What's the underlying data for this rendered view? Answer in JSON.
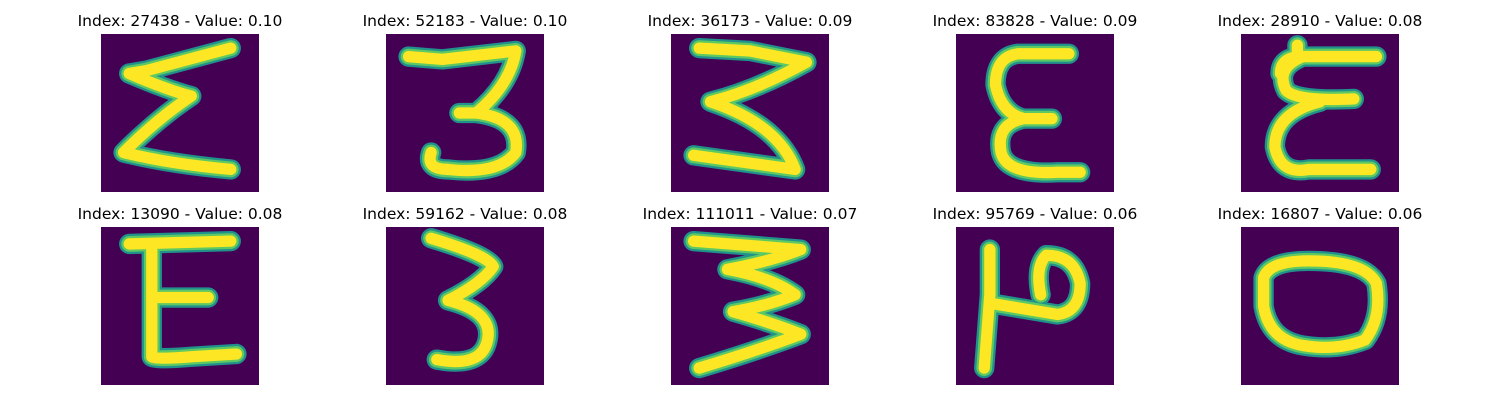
{
  "colors": {
    "background": "#440154",
    "stroke_edge": "#21918c",
    "stroke_mid": "#5ec962",
    "stroke_core": "#fde725"
  },
  "samples": [
    {
      "caption": "Index: 27438 - Value: 0.10",
      "glyph": "sigma-shape"
    },
    {
      "caption": "Index: 52183 - Value: 0.10",
      "glyph": "three-shape"
    },
    {
      "caption": "Index: 36173 - Value: 0.09",
      "glyph": "three-shape"
    },
    {
      "caption": "Index: 83828 - Value: 0.09",
      "glyph": "epsilon-shape"
    },
    {
      "caption": "Index: 28910 - Value: 0.08",
      "glyph": "epsilon-shape"
    },
    {
      "caption": "Index: 13090 - Value: 0.08",
      "glyph": "e-shape"
    },
    {
      "caption": "Index: 59162 - Value: 0.08",
      "glyph": "three-shape"
    },
    {
      "caption": "Index: 111011 - Value: 0.07",
      "glyph": "three-shape"
    },
    {
      "caption": "Index: 95769 - Value: 0.06",
      "glyph": "p-rotated-shape"
    },
    {
      "caption": "Index: 16807 - Value: 0.06",
      "glyph": "o-shape"
    }
  ]
}
